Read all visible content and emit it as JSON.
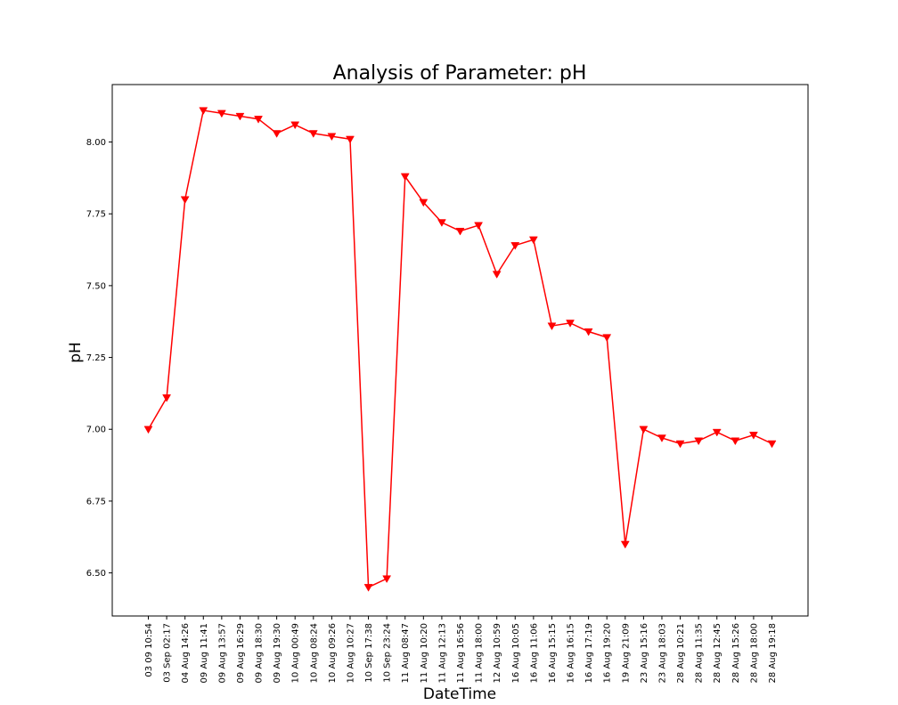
{
  "chart_data": {
    "type": "line",
    "title": "Analysis of Parameter: pH",
    "xlabel": "DateTime",
    "ylabel": "pH",
    "ylim": [
      6.35,
      8.2
    ],
    "yticks": [
      6.5,
      6.75,
      7.0,
      7.25,
      7.5,
      7.75,
      8.0
    ],
    "ytick_labels": [
      "6.50",
      "6.75",
      "7.00",
      "7.25",
      "7.50",
      "7.75",
      "8.00"
    ],
    "grid": false,
    "legend": "none",
    "line_color": "#ff0000",
    "marker": "triangle-down",
    "categories": [
      "03 09 10:54",
      "03 Sep 02:17",
      "04 Aug 14:26",
      "09 Aug 11:41",
      "09 Aug 13:57",
      "09 Aug 16:29",
      "09 Aug 18:30",
      "09 Aug 19:30",
      "10 Aug 00:49",
      "10 Aug 08:24",
      "10 Aug 09:26",
      "10 Aug 10:27",
      "10 Sep 17:38",
      "10 Sep 23:24",
      "11 Aug 08:47",
      "11 Aug 10:20",
      "11 Aug 12:13",
      "11 Aug 16:56",
      "11 Aug 18:00",
      "12 Aug 10:59",
      "16 Aug 10:05",
      "16 Aug 11:06",
      "16 Aug 15:15",
      "16 Aug 16:15",
      "16 Aug 17:19",
      "16 Aug 19:20",
      "19 Aug 21:09",
      "23 Aug 15:16",
      "23 Aug 18:03",
      "28 Aug 10:21",
      "28 Aug 11:35",
      "28 Aug 12:45",
      "28 Aug 15:26",
      "28 Aug 18:00",
      "28 Aug 19:18"
    ],
    "series": [
      {
        "values": [
          7.0,
          7.11,
          7.8,
          8.11,
          8.1,
          8.09,
          8.08,
          8.03,
          8.06,
          8.03,
          8.02,
          8.01,
          6.45,
          6.48,
          7.88,
          7.79,
          7.72,
          7.69,
          7.71,
          7.54,
          7.64,
          7.66,
          7.36,
          7.37,
          7.34,
          7.32,
          6.6,
          7.0,
          6.97,
          6.95,
          6.96,
          6.99,
          6.96,
          6.98,
          6.95
        ]
      }
    ]
  }
}
